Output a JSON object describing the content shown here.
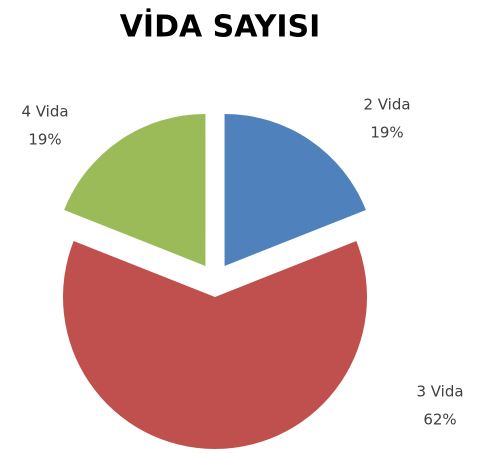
{
  "chart_data": {
    "type": "pie",
    "title": "VİDA SAYISI",
    "categories": [
      "2 Vida",
      "3 Vida",
      "4 Vida"
    ],
    "values": [
      19,
      62,
      19
    ],
    "value_labels": [
      "19%",
      "62%",
      "19%"
    ],
    "colors": [
      "#4f81bd",
      "#c0504d",
      "#9bbb59"
    ]
  }
}
